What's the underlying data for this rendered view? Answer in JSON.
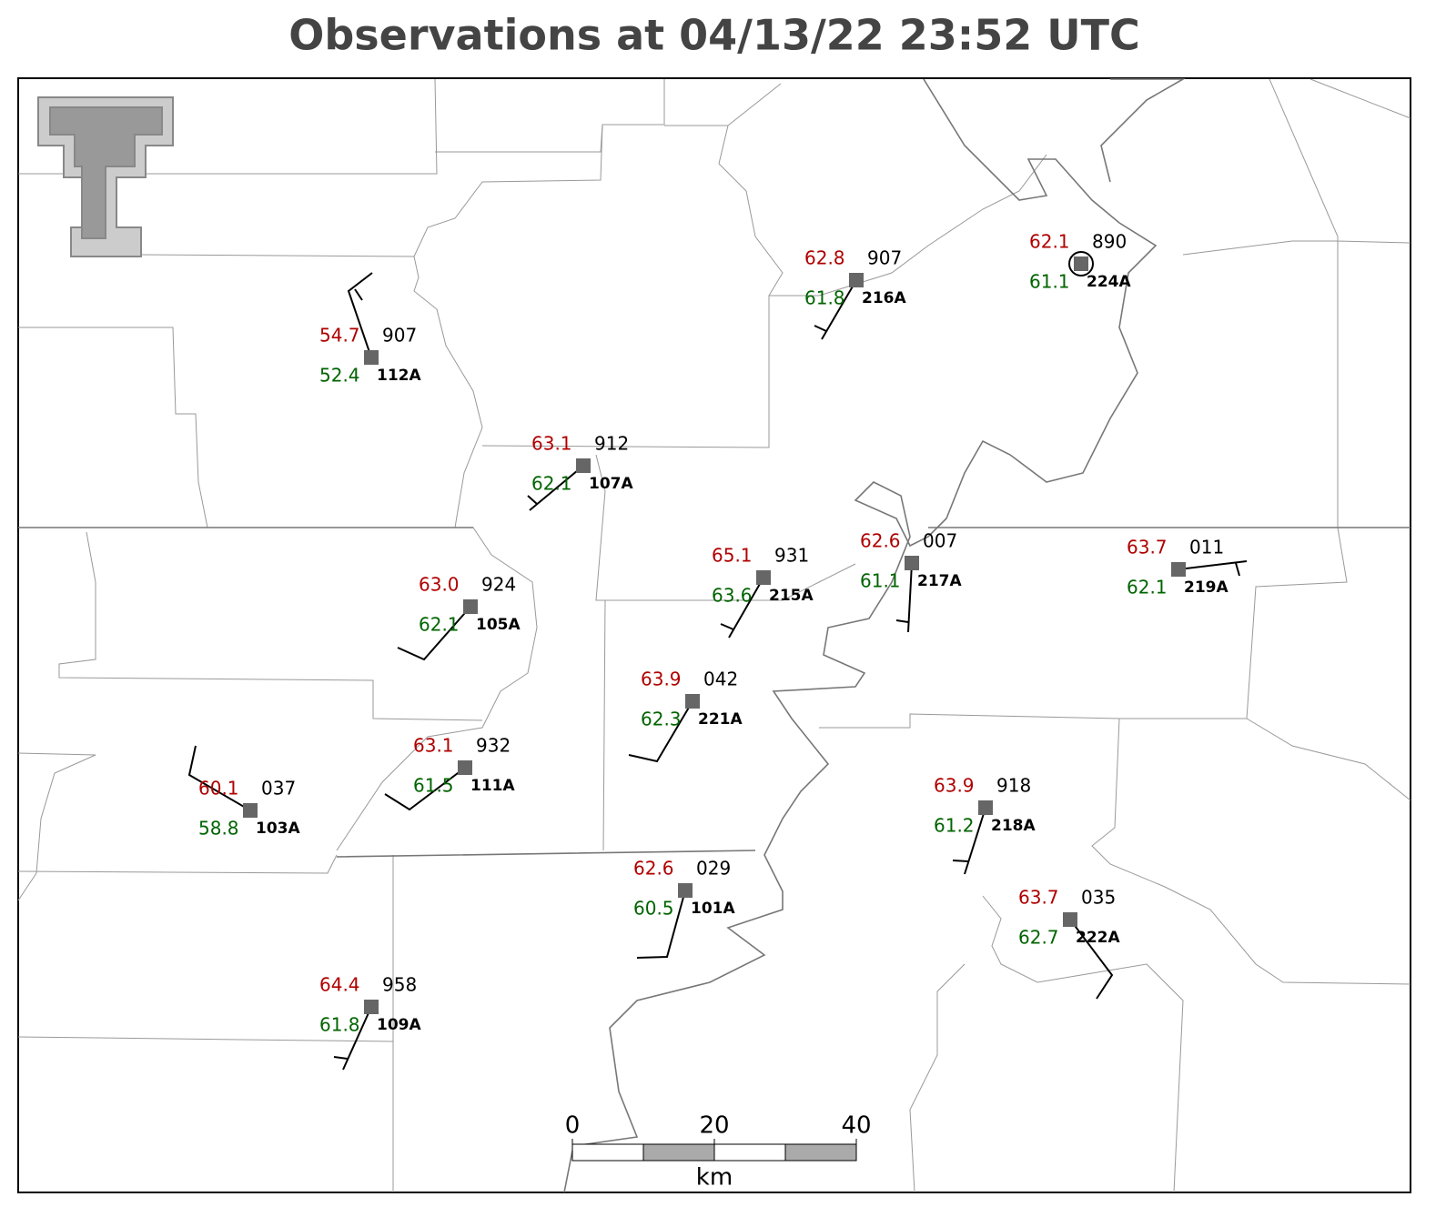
{
  "title": "Observations at 04/13/22 23:52 UTC",
  "stations": [
    {
      "temperature": "54.7",
      "dewpoint": "52.4",
      "pressure": "907",
      "id": "112A"
    },
    {
      "temperature": "63.1",
      "dewpoint": "62.1",
      "pressure": "912",
      "id": "107A"
    },
    {
      "temperature": "62.8",
      "dewpoint": "61.8",
      "pressure": "907",
      "id": "216A"
    },
    {
      "temperature": "62.1",
      "dewpoint": "61.1",
      "pressure": "890",
      "id": "224A"
    },
    {
      "temperature": "63.0",
      "dewpoint": "62.1",
      "pressure": "924",
      "id": "105A"
    },
    {
      "temperature": "65.1",
      "dewpoint": "63.6",
      "pressure": "931",
      "id": "215A"
    },
    {
      "temperature": "62.6",
      "dewpoint": "61.1",
      "pressure": "007",
      "id": "217A"
    },
    {
      "temperature": "63.7",
      "dewpoint": "62.1",
      "pressure": "011",
      "id": "219A"
    },
    {
      "temperature": "63.9",
      "dewpoint": "62.3",
      "pressure": "042",
      "id": "221A"
    },
    {
      "temperature": "63.1",
      "dewpoint": "61.5",
      "pressure": "932",
      "id": "111A"
    },
    {
      "temperature": "60.1",
      "dewpoint": "58.8",
      "pressure": "037",
      "id": "103A"
    },
    {
      "temperature": "63.9",
      "dewpoint": "61.2",
      "pressure": "918",
      "id": "218A"
    },
    {
      "temperature": "62.6",
      "dewpoint": "60.5",
      "pressure": "029",
      "id": "101A"
    },
    {
      "temperature": "63.7",
      "dewpoint": "62.7",
      "pressure": "035",
      "id": "222A"
    },
    {
      "temperature": "64.4",
      "dewpoint": "61.8",
      "pressure": "958",
      "id": "109A"
    }
  ],
  "scale_bar": {
    "ticks": [
      0,
      20,
      40
    ],
    "unit": "km"
  }
}
